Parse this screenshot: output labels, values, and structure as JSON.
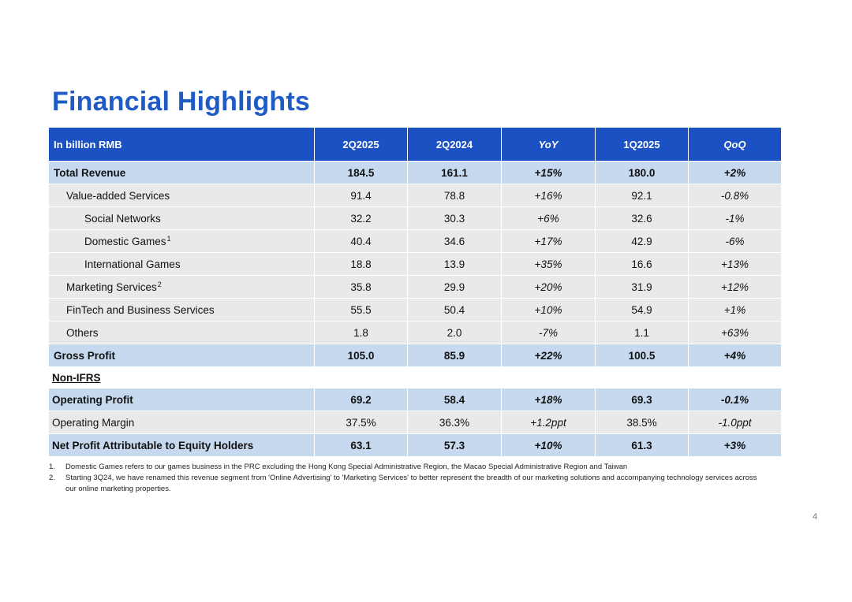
{
  "title": "Financial Highlights",
  "header": {
    "label": "In billion RMB",
    "c1": "2Q2025",
    "c2": "2Q2024",
    "c3": "YoY",
    "c4": "1Q2025",
    "c5": "QoQ"
  },
  "rows": {
    "total_revenue": {
      "label": "Total Revenue",
      "c1": "184.5",
      "c2": "161.1",
      "c3": "+15%",
      "c4": "180.0",
      "c5": "+2%"
    },
    "vas": {
      "label": "Value-added Services",
      "c1": "91.4",
      "c2": "78.8",
      "c3": "+16%",
      "c4": "92.1",
      "c5": "-0.8%"
    },
    "social": {
      "label": "Social Networks",
      "c1": "32.2",
      "c2": "30.3",
      "c3": "+6%",
      "c4": "32.6",
      "c5": "-1%"
    },
    "domestic": {
      "label": "Domestic Games",
      "sup": "1",
      "c1": "40.4",
      "c2": "34.6",
      "c3": "+17%",
      "c4": "42.9",
      "c5": "-6%"
    },
    "international": {
      "label": "International Games",
      "c1": "18.8",
      "c2": "13.9",
      "c3": "+35%",
      "c4": "16.6",
      "c5": "+13%"
    },
    "marketing": {
      "label": "Marketing Services",
      "sup": "2",
      "c1": "35.8",
      "c2": "29.9",
      "c3": "+20%",
      "c4": "31.9",
      "c5": "+12%"
    },
    "fintech": {
      "label": "FinTech and Business Services",
      "c1": "55.5",
      "c2": "50.4",
      "c3": "+10%",
      "c4": "54.9",
      "c5": "+1%"
    },
    "others": {
      "label": "Others",
      "c1": "1.8",
      "c2": "2.0",
      "c3": "-7%",
      "c4": "1.1",
      "c5": "+63%"
    },
    "gross_profit": {
      "label": "Gross Profit",
      "c1": "105.0",
      "c2": "85.9",
      "c3": "+22%",
      "c4": "100.5",
      "c5": "+4%"
    },
    "non_ifrs": {
      "label": "Non-IFRS"
    },
    "operating_profit": {
      "label": "Operating Profit",
      "c1": "69.2",
      "c2": "58.4",
      "c3": "+18%",
      "c4": "69.3",
      "c5": "-0.1%"
    },
    "operating_margin": {
      "label": "Operating Margin",
      "c1": "37.5%",
      "c2": "36.3%",
      "c3": "+1.2ppt",
      "c4": "38.5%",
      "c5": "-1.0ppt"
    },
    "net_profit": {
      "label": "Net Profit Attributable to Equity Holders",
      "c1": "63.1",
      "c2": "57.3",
      "c3": "+10%",
      "c4": "61.3",
      "c5": "+3%"
    }
  },
  "notes": [
    {
      "num": "1.",
      "text": "Domestic Games refers to our games business in the PRC excluding the Hong Kong Special Administrative Region, the Macao Special Administrative Region and Taiwan"
    },
    {
      "num": "2.",
      "text": "Starting 3Q24, we have renamed this revenue segment from 'Online Advertising' to 'Marketing Services' to better represent the breadth of our marketing solutions and accompanying technology services across our online marketing properties."
    }
  ],
  "page_number": "4",
  "colors": {
    "title": "#1f5bc6",
    "header_bg": "#1b51c2",
    "major_row_bg": "#c7d9ef",
    "row_bg": "#e9e9e9"
  }
}
